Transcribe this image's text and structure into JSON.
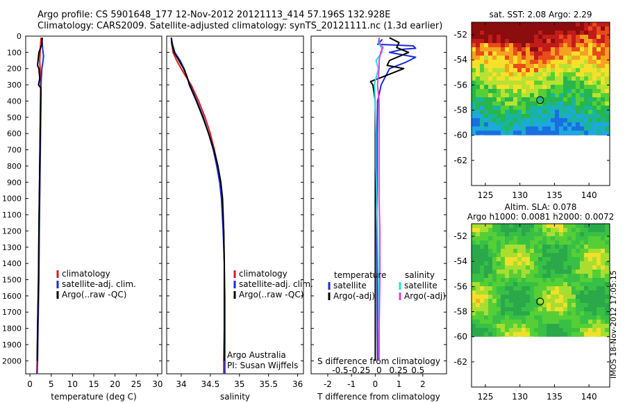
{
  "header": {
    "title_line1": "Argo profile: CS 5901648_177 12-Nov-2012 20121113_414 57.196S 132.928E",
    "title_line2": "Climatology: CARS2009. Satellite-adjusted climatology: synTS_20121111.nc (1.3d earlier)"
  },
  "colors": {
    "climatology": "#dd1a1a",
    "satellite": "#1a2ad8",
    "argo": "#000000",
    "salinity_satellite": "#22dde8",
    "salinity_argo": "#e040e0"
  },
  "chart_data": [
    {
      "id": "temperature",
      "type": "line",
      "xlabel": "temperature (deg C)",
      "xlim": [
        -1,
        31
      ],
      "xticks": [
        0,
        5,
        10,
        15,
        20,
        25,
        30
      ],
      "ylim": [
        2080,
        0
      ],
      "yticks": [
        0,
        100,
        200,
        300,
        400,
        500,
        600,
        700,
        800,
        900,
        1000,
        1100,
        1200,
        1300,
        1400,
        1500,
        1600,
        1700,
        1800,
        1900,
        2000
      ],
      "legend": [
        "climatology",
        "satellite-adj. clim.",
        "Argo(..raw -QC)"
      ],
      "series": [
        {
          "name": "climatology",
          "depth": [
            10,
            50,
            100,
            150,
            200,
            300,
            400,
            600,
            800,
            1000,
            1200,
            1500,
            1800,
            2000,
            2080
          ],
          "values": [
            2.6,
            2.5,
            2.4,
            2.3,
            2.4,
            2.5,
            2.5,
            2.4,
            2.3,
            2.2,
            2.1,
            2.0,
            1.8,
            1.7,
            1.6
          ]
        },
        {
          "name": "satellite-adj. clim.",
          "depth": [
            10,
            50,
            80,
            120,
            150,
            200,
            300,
            400,
            600,
            800,
            1000,
            1200,
            1500,
            1800,
            2000,
            2080
          ],
          "values": [
            2.8,
            2.9,
            3.0,
            3.2,
            3.1,
            2.8,
            2.6,
            2.6,
            2.5,
            2.4,
            2.3,
            2.2,
            2.1,
            1.9,
            1.8,
            1.7
          ]
        },
        {
          "name": "Argo(..raw -QC)",
          "depth": [
            10,
            50,
            100,
            150,
            180,
            200,
            260,
            300,
            320,
            400,
            600,
            800,
            1000,
            1200,
            1500,
            1800,
            2000
          ],
          "values": [
            2.9,
            2.8,
            2.1,
            1.9,
            1.8,
            2.1,
            2.3,
            2.0,
            2.6,
            2.5,
            2.4,
            2.3,
            2.2,
            2.1,
            2.0,
            1.8,
            1.7
          ]
        }
      ]
    },
    {
      "id": "salinity",
      "type": "line",
      "xlabel": "salinity",
      "xlim": [
        33.75,
        36.1
      ],
      "xticks": [
        34,
        34.5,
        35,
        35.5,
        36
      ],
      "ylim": [
        2080,
        0
      ],
      "legend": [
        "climatology",
        "satellite-adj. clim.",
        "Argo(..raw -QC)"
      ],
      "annotations": [
        "Argo Australia",
        "PI: Susan Wijffels"
      ],
      "series": [
        {
          "name": "climatology",
          "depth": [
            10,
            50,
            100,
            150,
            200,
            250,
            300,
            400,
            500,
            600,
            700,
            800,
            900,
            1000,
            1200,
            1400,
            1600,
            1800,
            2000,
            2080
          ],
          "values": [
            33.83,
            33.84,
            33.86,
            33.92,
            34.0,
            34.08,
            34.17,
            34.3,
            34.41,
            34.5,
            34.57,
            34.63,
            34.67,
            34.7,
            34.73,
            34.74,
            34.74,
            34.74,
            34.73,
            34.73
          ]
        },
        {
          "name": "satellite-adj. clim.",
          "depth": [
            10,
            50,
            100,
            150,
            200,
            250,
            300,
            400,
            500,
            600,
            700,
            800,
            900,
            1000,
            1200,
            1400,
            1600,
            1800,
            2000,
            2080
          ],
          "values": [
            33.83,
            33.85,
            33.89,
            33.98,
            34.05,
            34.1,
            34.15,
            34.27,
            34.38,
            34.47,
            34.55,
            34.61,
            34.66,
            34.69,
            34.72,
            34.74,
            34.75,
            34.75,
            34.75,
            34.75
          ]
        },
        {
          "name": "Argo(..raw -QC)",
          "depth": [
            10,
            50,
            100,
            150,
            200,
            250,
            300,
            400,
            500,
            600,
            700,
            800,
            900,
            1000,
            1200,
            1400,
            1600,
            1800,
            2000
          ],
          "values": [
            33.83,
            33.84,
            33.88,
            33.96,
            34.04,
            34.1,
            34.14,
            34.26,
            34.37,
            34.47,
            34.56,
            34.63,
            34.68,
            34.71,
            34.73,
            34.74,
            34.74,
            34.74,
            34.74
          ]
        }
      ]
    },
    {
      "id": "difference",
      "type": "line",
      "xlabel": "T difference from climatology",
      "xlabel_top": "S difference from climatology",
      "xlim": [
        -2.7,
        3.0
      ],
      "xticks": [
        -2,
        -1,
        0,
        1,
        2
      ],
      "xticks_top": [
        -0.5,
        -0.25,
        0,
        0.25,
        0.5
      ],
      "ylim": [
        2080,
        0
      ],
      "legend_temperature_heading": "temperature",
      "legend_salinity_heading": "salinity",
      "legend_temperature": [
        "satellite",
        "Argo(-adj)"
      ],
      "legend_salinity": [
        "satellite",
        "Argo(-adj)"
      ],
      "series": [
        {
          "name": "T satellite",
          "depth": [
            20,
            50,
            60,
            75,
            80,
            100,
            130,
            160,
            200,
            300,
            400,
            600,
            800,
            1000,
            1200,
            1500,
            1800,
            2000
          ],
          "values": [
            0.3,
            0.1,
            1.6,
            1.7,
            1.2,
            0.6,
            1.7,
            1.3,
            0.6,
            0.25,
            0.1,
            0.08,
            0.08,
            0.08,
            0.07,
            0.08,
            0.09,
            0.1
          ]
        },
        {
          "name": "T Argo(-adj)",
          "depth": [
            10,
            40,
            70,
            100,
            150,
            180,
            200,
            260,
            280,
            300,
            400,
            600,
            800,
            1000,
            1200,
            1500,
            1800,
            2000
          ],
          "values": [
            0.6,
            1.0,
            0.9,
            1.4,
            0.6,
            0.5,
            1.2,
            0.15,
            -0.2,
            -0.1,
            0.0,
            0.0,
            0.0,
            0.0,
            0.0,
            0.0,
            0.0,
            0.0
          ]
        },
        {
          "name": "S satellite",
          "depth": [
            10,
            40,
            70,
            100,
            150,
            200,
            300,
            400,
            600,
            800,
            1000,
            1200,
            1500,
            1800,
            2000
          ],
          "values": [
            0.0,
            -0.01,
            0.03,
            0.04,
            -0.04,
            -0.01,
            -0.06,
            -0.05,
            -0.04,
            -0.04,
            -0.03,
            -0.02,
            -0.01,
            0.0,
            0.0
          ]
        },
        {
          "name": "S Argo(-adj)",
          "depth": [
            10,
            40,
            70,
            100,
            150,
            200,
            300,
            400,
            600,
            800,
            1000,
            1200,
            1500,
            1800,
            2000
          ],
          "values": [
            0.0,
            0.0,
            0.05,
            0.02,
            0.0,
            0.0,
            -0.02,
            0.0,
            0.0,
            0.0,
            0.0,
            0.01,
            0.01,
            0.0,
            0.0
          ]
        }
      ]
    },
    {
      "id": "map_sst",
      "type": "heatmap",
      "title": "sat. SST: 2.08 Argo: 2.29",
      "xlim": [
        123,
        143
      ],
      "ylim": [
        -64,
        -51
      ],
      "xticks": [
        125,
        130,
        135,
        140
      ],
      "yticks": [
        -52,
        -54,
        -56,
        -58,
        -60,
        -62
      ],
      "data_south_limit": -60,
      "marker": {
        "lon": 132.928,
        "lat": -57.196
      }
    },
    {
      "id": "map_sla",
      "type": "heatmap",
      "title": "Altim. SLA: 0.078",
      "subtitle": "Argo h1000: 0.0081 h2000: 0.0072",
      "xlim": [
        123,
        143
      ],
      "ylim": [
        -64,
        -51
      ],
      "xticks": [
        125,
        130,
        135,
        140
      ],
      "yticks": [
        -52,
        -54,
        -56,
        -58,
        -60,
        -62
      ],
      "data_south_limit": -60,
      "marker": {
        "lon": 132.928,
        "lat": -57.196
      }
    }
  ],
  "footer_stamp": "IMOS 18-Nov-2012 17:05:15"
}
